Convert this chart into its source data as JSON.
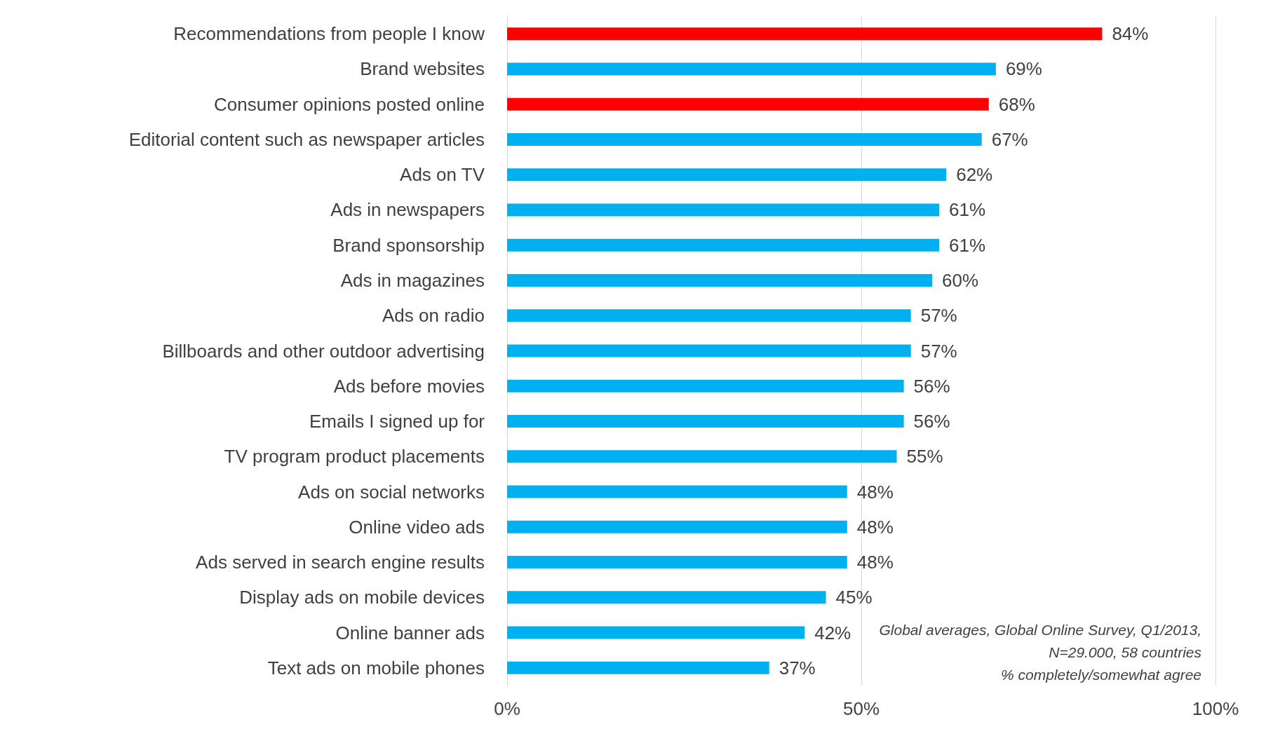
{
  "chart_data": {
    "type": "bar",
    "orientation": "horizontal",
    "categories": [
      "Recommendations from people I know",
      "Brand websites",
      "Consumer opinions posted online",
      "Editorial content such as newspaper articles",
      "Ads on TV",
      "Ads in newspapers",
      "Brand sponsorship",
      "Ads in magazines",
      "Ads on radio",
      "Billboards and other outdoor advertising",
      "Ads before movies",
      "Emails I signed up for",
      "TV program product placements",
      "Ads on social networks",
      "Online video ads",
      "Ads served in search engine results",
      "Display ads on mobile devices",
      "Online banner ads",
      "Text ads on mobile phones"
    ],
    "values": [
      84,
      69,
      68,
      67,
      62,
      61,
      61,
      60,
      57,
      57,
      56,
      56,
      55,
      48,
      48,
      48,
      45,
      42,
      37
    ],
    "value_labels": [
      "84%",
      "69%",
      "68%",
      "67%",
      "62%",
      "61%",
      "61%",
      "60%",
      "57%",
      "57%",
      "56%",
      "56%",
      "55%",
      "48%",
      "48%",
      "48%",
      "45%",
      "42%",
      "37%"
    ],
    "colors": [
      "#ff0000",
      "#00b0f0",
      "#ff0000",
      "#00b0f0",
      "#00b0f0",
      "#00b0f0",
      "#00b0f0",
      "#00b0f0",
      "#00b0f0",
      "#00b0f0",
      "#00b0f0",
      "#00b0f0",
      "#00b0f0",
      "#00b0f0",
      "#00b0f0",
      "#00b0f0",
      "#00b0f0",
      "#00b0f0",
      "#00b0f0"
    ],
    "xlim": [
      0,
      100
    ],
    "xticks": [
      {
        "value": 0,
        "label": "0%"
      },
      {
        "value": 50,
        "label": "50%"
      },
      {
        "value": 100,
        "label": "100%"
      }
    ],
    "grid": "x",
    "annotations": [
      "Global averages, Global Online Survey, Q1/2013,",
      "N=29.000, 58 countries",
      "% completely/somewhat agree"
    ]
  }
}
